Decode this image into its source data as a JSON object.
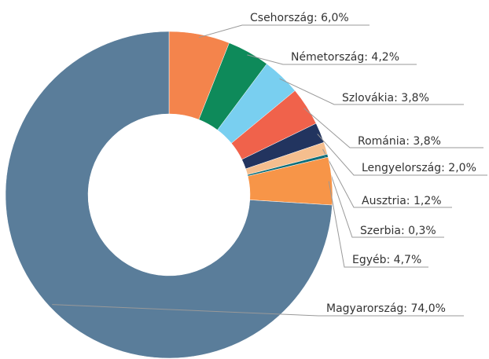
{
  "chart_data": {
    "type": "pie",
    "labels": [
      "Csehország: 6,0%",
      "Németország: 4,2%",
      "Szlovákia: 3,8%",
      "Románia: 3,8%",
      "Lengyelország: 2,0%",
      "Ausztria: 1,2%",
      "Szerbia: 0,3%",
      "Egyéb: 4,7%",
      "Magyarország: 74,0%"
    ],
    "values": [
      6.0,
      4.2,
      3.8,
      3.8,
      2.0,
      1.2,
      0.3,
      4.7,
      74.0
    ],
    "colors": [
      "#f4844c",
      "#0e8a5a",
      "#79cff0",
      "#f0624b",
      "#22345f",
      "#f5be8e",
      "#0d6e7a",
      "#f79548",
      "#5a7d9a"
    ]
  }
}
